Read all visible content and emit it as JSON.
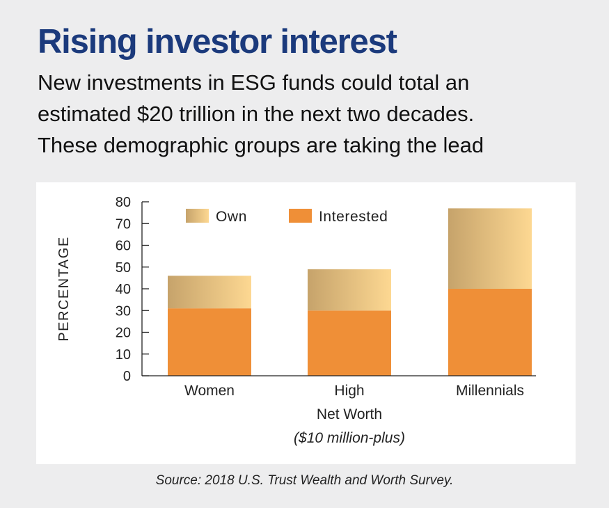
{
  "header": {
    "title": "Rising investor interest",
    "subtitle": "New investments in ESG funds could total an\nestimated $20 trillion in the next two decades.\nThese demographic groups are taking the lead"
  },
  "chart_data": {
    "type": "bar",
    "stacked": true,
    "categories": [
      [
        "Women"
      ],
      [
        "High",
        "Net Worth",
        "($10 million-plus)"
      ],
      [
        "Millennials"
      ]
    ],
    "series": [
      {
        "name": "Interested",
        "values": [
          31,
          30,
          40
        ],
        "color": "#ef8f37"
      },
      {
        "name": "Own",
        "values": [
          15,
          19,
          37
        ],
        "color": "#fdd892",
        "gradient_from": "#c6a36b"
      }
    ],
    "legend_order": [
      "Own",
      "Interested"
    ],
    "ylabel": "PERCENTAGE",
    "ylim": [
      0,
      80
    ],
    "yticks": [
      0,
      10,
      20,
      30,
      40,
      50,
      60,
      70,
      80
    ],
    "legend_position": "top-left"
  },
  "footer": {
    "source": "Source: 2018 U.S. Trust Wealth and Worth Survey."
  }
}
